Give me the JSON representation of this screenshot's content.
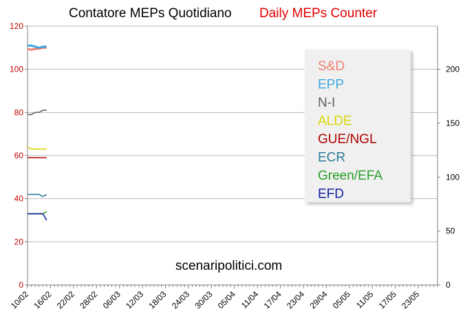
{
  "chart_data": {
    "type": "line",
    "title": "Contatore MEPs Quotidiano",
    "subtitle": "Daily MEPs Counter",
    "subtitle_color": "#e00000",
    "watermark": "scenaripolitici.com",
    "xlabel": "",
    "ylabel": "",
    "y_left_lim": [
      0,
      120
    ],
    "y_left_ticks": [
      "0",
      "20",
      "40",
      "60",
      "80",
      "100",
      "120"
    ],
    "y_right_lim": [
      0,
      240
    ],
    "y_right_ticks": [
      "0",
      "50",
      "100",
      "150",
      "200"
    ],
    "grid": true,
    "legend_placement": "top-right",
    "x_tick_labels": [
      "10/02",
      "16/02",
      "22/02",
      "28/02",
      "06/03",
      "12/03",
      "18/03",
      "24/03",
      "30/03",
      "05/04",
      "11/04",
      "17/04",
      "23/04",
      "29/04",
      "05/05",
      "11/05",
      "17/05",
      "23/05"
    ],
    "x_days": [
      0,
      1,
      2,
      3,
      4,
      5
    ],
    "x_total_days": 107,
    "series": [
      {
        "name": "S&D",
        "color": "#f08070",
        "axis": "right",
        "values": [
          219,
          218,
          219,
          219,
          220,
          220
        ]
      },
      {
        "name": "EPP",
        "color": "#40a8e0",
        "axis": "right",
        "values": [
          222,
          222,
          221,
          220,
          221,
          221
        ]
      },
      {
        "name": "N-I",
        "color": "#606060",
        "axis": "left",
        "values": [
          79,
          79,
          80,
          80,
          81,
          81
        ]
      },
      {
        "name": "ALDE",
        "color": "#d8d800",
        "axis": "left",
        "values": [
          64,
          63,
          63,
          63,
          63,
          63
        ]
      },
      {
        "name": "GUE/NGL",
        "color": "#b00000",
        "axis": "left",
        "values": [
          59,
          59,
          59,
          59,
          59,
          59
        ]
      },
      {
        "name": "ECR",
        "color": "#2a7a9a",
        "axis": "left",
        "values": [
          42,
          42,
          42,
          42,
          41,
          42
        ]
      },
      {
        "name": "Green/EFA",
        "color": "#28a028",
        "axis": "left",
        "values": [
          33,
          33,
          33,
          33,
          33,
          34
        ]
      },
      {
        "name": "EFD",
        "color": "#1020a0",
        "axis": "left",
        "values": [
          33,
          33,
          33,
          33,
          33,
          30
        ]
      }
    ]
  }
}
